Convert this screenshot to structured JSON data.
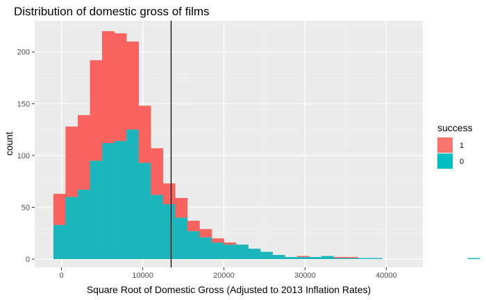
{
  "chart_data": {
    "type": "bar",
    "title": "Distribution of domestic gross of films",
    "xlabel": "Square Root of Domestic Gross (Adjusted to 2013 Inflation Rates)",
    "ylabel": "count",
    "xlim": [
      -3300,
      44500
    ],
    "ylim": [
      -8,
      230
    ],
    "x_ticks": [
      0,
      10000,
      20000,
      30000,
      40000
    ],
    "y_ticks": [
      0,
      50,
      100,
      150,
      200
    ],
    "x_tick_labels": [
      "0",
      "10000",
      "20000",
      "30000",
      "40000"
    ],
    "y_tick_labels": [
      "0",
      "50",
      "100",
      "150",
      "200"
    ],
    "grid": true,
    "stacked": true,
    "bin_start": -1000,
    "bin_width": 1500,
    "vline_x": 13500,
    "legend": {
      "title": "success",
      "position": "right",
      "entries": [
        {
          "label": "1",
          "color": "#F8766D"
        },
        {
          "label": "0",
          "color": "#00BFC4"
        }
      ]
    },
    "series": [
      {
        "label": "0",
        "color": "#1BB6BB",
        "values": [
          33,
          60,
          67,
          95,
          112,
          114,
          125,
          93,
          62,
          53,
          40,
          27,
          21,
          16,
          14,
          14,
          10,
          7,
          4,
          2,
          2,
          2,
          3,
          1,
          1,
          1,
          1,
          0,
          0,
          0,
          0,
          0,
          0,
          0,
          1
        ]
      },
      {
        "label": "1",
        "color": "#F8625F",
        "values": [
          30,
          68,
          72,
          97,
          108,
          104,
          85,
          55,
          45,
          20,
          19,
          10,
          8,
          4,
          2,
          0,
          0,
          0,
          0,
          0,
          1,
          0,
          0,
          1,
          1,
          0,
          0,
          0,
          0,
          0,
          0,
          0,
          0,
          0,
          0
        ]
      }
    ]
  }
}
